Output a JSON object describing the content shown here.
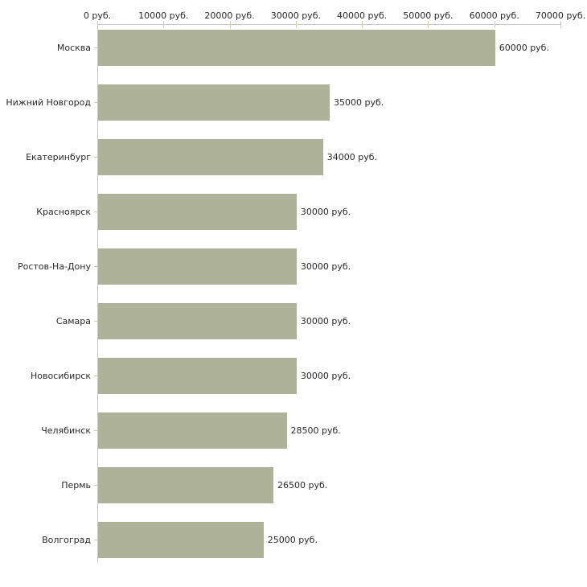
{
  "chart_data": {
    "type": "bar",
    "orientation": "horizontal",
    "title": "",
    "categories": [
      "Москва",
      "Нижний Новгород",
      "Екатеринбург",
      "Красноярск",
      "Ростов-На-Дону",
      "Самара",
      "Новосибирск",
      "Челябинск",
      "Пермь",
      "Волгоград"
    ],
    "values": [
      60000,
      35000,
      34000,
      30000,
      30000,
      30000,
      30000,
      28500,
      26500,
      25000
    ],
    "value_labels": [
      "60000 руб.",
      "35000 руб.",
      "34000 руб.",
      "30000 руб.",
      "30000 руб.",
      "30000 руб.",
      "30000 руб.",
      "28500 руб.",
      "26500 руб.",
      "25000 руб."
    ],
    "x_axis": {
      "min": 0,
      "max": 70000,
      "tick_step": 10000,
      "tick_labels": [
        "0 руб.",
        "10000 руб.",
        "20000 руб.",
        "30000 руб.",
        "40000 руб.",
        "50000 руб.",
        "60000 руб.",
        "70000 руб."
      ],
      "unit": "руб.",
      "position": "top"
    },
    "legend": false,
    "grid": false,
    "colors": {
      "bar": "#adb299",
      "axis_line": "#c8c8c8",
      "tick": "#d2ceac",
      "text": "#2a2a2a",
      "background": "#ffffff"
    }
  }
}
